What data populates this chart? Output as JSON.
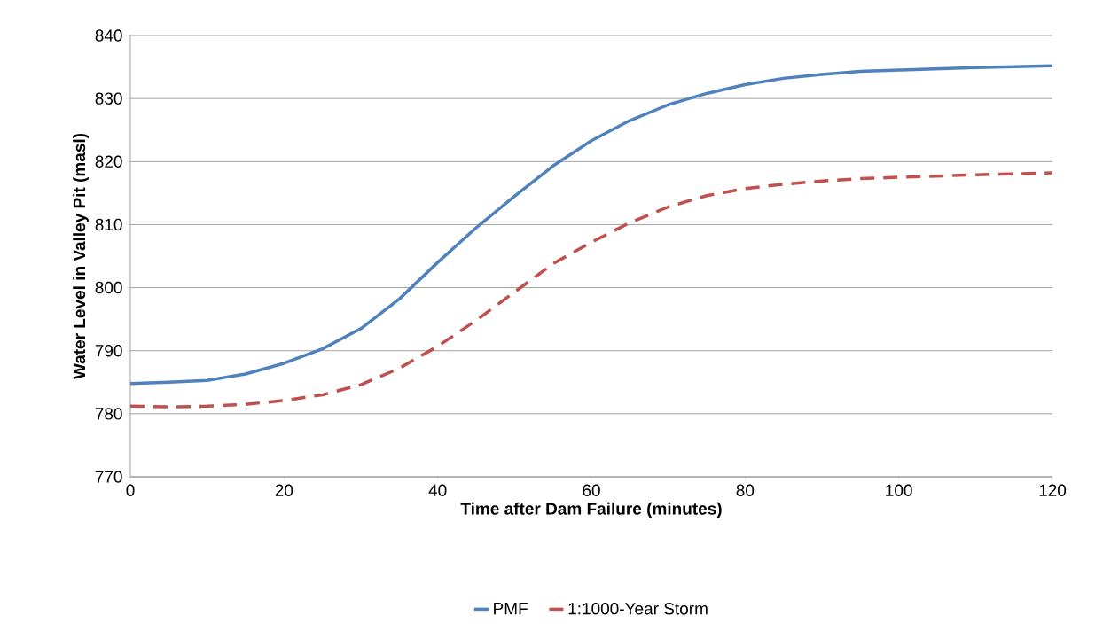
{
  "chart_data": {
    "type": "line",
    "xlabel": "Time after Dam Failure (minutes)",
    "ylabel": "Water Level in Valley Pit (masl)",
    "x": [
      0,
      5,
      10,
      15,
      20,
      25,
      30,
      35,
      40,
      45,
      50,
      55,
      60,
      65,
      70,
      75,
      80,
      85,
      90,
      95,
      100,
      110,
      120
    ],
    "series": [
      {
        "name": "PMF",
        "color": "#4f81bd",
        "line_style": "solid",
        "values": [
          784.8,
          785.0,
          785.3,
          786.3,
          788.0,
          790.3,
          793.5,
          798.2,
          804.0,
          809.5,
          814.5,
          819.3,
          823.3,
          826.5,
          829.0,
          830.8,
          832.2,
          833.2,
          833.8,
          834.3,
          834.5,
          834.9,
          835.2
        ]
      },
      {
        "name": "1:1000-Year Storm",
        "color": "#c0504d",
        "line_style": "dashed",
        "values": [
          781.2,
          781.1,
          781.2,
          781.5,
          782.1,
          783.0,
          784.6,
          787.2,
          790.7,
          794.8,
          799.3,
          803.8,
          807.2,
          810.3,
          812.8,
          814.6,
          815.7,
          816.4,
          816.9,
          817.3,
          817.5,
          817.9,
          818.2
        ]
      }
    ],
    "xlim": [
      0,
      120
    ],
    "xticks": [
      0,
      20,
      40,
      60,
      80,
      100,
      120
    ],
    "ylim": [
      770,
      840
    ],
    "yticks": [
      770,
      780,
      790,
      800,
      810,
      820,
      830,
      840
    ],
    "grid": "y",
    "legend": "bottom",
    "marker": "none"
  }
}
